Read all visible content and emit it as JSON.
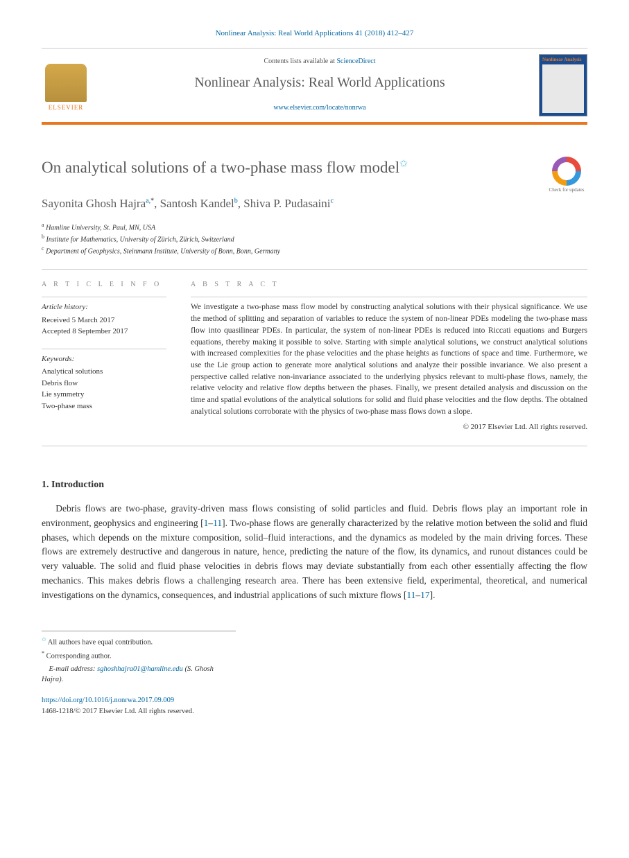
{
  "citation": "Nonlinear Analysis: Real World Applications 41 (2018) 412–427",
  "header": {
    "contents_prefix": "Contents lists available at ",
    "contents_link": "ScienceDirect",
    "journal_name": "Nonlinear Analysis: Real World Applications",
    "journal_url": "www.elsevier.com/locate/nonrwa",
    "publisher": "ELSEVIER",
    "cover_title": "Nonlinear Analysis"
  },
  "article": {
    "title": "On analytical solutions of a two-phase mass flow model",
    "check_updates": "Check for updates"
  },
  "authors": {
    "a1": "Sayonita Ghosh Hajra",
    "a1_sup": "a,",
    "a1_star": "*",
    "a2": "Santosh Kandel",
    "a2_sup": "b",
    "a3": "Shiva P. Pudasaini",
    "a3_sup": "c"
  },
  "affiliations": {
    "a": "Hamline University, St. Paul, MN, USA",
    "b": "Institute for Mathematics, University of Zürich, Zürich, Switzerland",
    "c": "Department of Geophysics, Steinmann Institute, University of Bonn, Bonn, Germany"
  },
  "info": {
    "label": "A R T I C L E   I N F O",
    "history_head": "Article history:",
    "received": "Received 5 March 2017",
    "accepted": "Accepted 8 September 2017",
    "keywords_head": "Keywords:",
    "kw1": "Analytical solutions",
    "kw2": "Debris flow",
    "kw3": "Lie symmetry",
    "kw4": "Two-phase mass"
  },
  "abstract": {
    "label": "A B S T R A C T",
    "text": "We investigate a two-phase mass flow model by constructing analytical solutions with their physical significance. We use the method of splitting and separation of variables to reduce the system of non-linear PDEs modeling the two-phase mass flow into quasilinear PDEs. In particular, the system of non-linear PDEs is reduced into Riccati equations and Burgers equations, thereby making it possible to solve. Starting with simple analytical solutions, we construct analytical solutions with increased complexities for the phase velocities and the phase heights as functions of space and time. Furthermore, we use the Lie group action to generate more analytical solutions and analyze their possible invariance. We also present a perspective called relative non-invariance associated to the underlying physics relevant to multi-phase flows, namely, the relative velocity and relative flow depths between the phases. Finally, we present detailed analysis and discussion on the time and spatial evolutions of the analytical solutions for solid and fluid phase velocities and the flow depths. The obtained analytical solutions corroborate with the physics of two-phase mass flows down a slope.",
    "copyright": "© 2017 Elsevier Ltd. All rights reserved."
  },
  "section1": {
    "head": "1. Introduction",
    "para": "Debris flows are two-phase, gravity-driven mass flows consisting of solid particles and fluid. Debris flows play an important role in environment, geophysics and engineering [1–11]. Two-phase flows are generally characterized by the relative motion between the solid and fluid phases, which depends on the mixture composition, solid–fluid interactions, and the dynamics as modeled by the main driving forces. These flows are extremely destructive and dangerous in nature, hence, predicting the nature of the flow, its dynamics, and runout distances could be very valuable. The solid and fluid phase velocities in debris flows may deviate substantially from each other essentially affecting the flow mechanics. This makes debris flows a challenging research area. There has been extensive field, experimental, theoretical, and numerical investigations on the dynamics, consequences, and industrial applications of such mixture flows [11–17].",
    "ref1": "1",
    "ref2": "11",
    "ref3": "11",
    "ref4": "17"
  },
  "footnotes": {
    "f1": "All authors have equal contribution.",
    "f2": "Corresponding author.",
    "email_label": "E-mail address: ",
    "email": "sghoshhajra01@hamline.edu",
    "email_suffix": " (S. Ghosh Hajra)."
  },
  "footer": {
    "doi": "https://doi.org/10.1016/j.nonrwa.2017.09.009",
    "issn": "1468-1218/© 2017 Elsevier Ltd. All rights reserved."
  },
  "colors": {
    "accent_orange": "#e87722",
    "link_blue": "#0066a1",
    "text_gray": "#5a5a5a",
    "cyan": "#4db8d8"
  }
}
